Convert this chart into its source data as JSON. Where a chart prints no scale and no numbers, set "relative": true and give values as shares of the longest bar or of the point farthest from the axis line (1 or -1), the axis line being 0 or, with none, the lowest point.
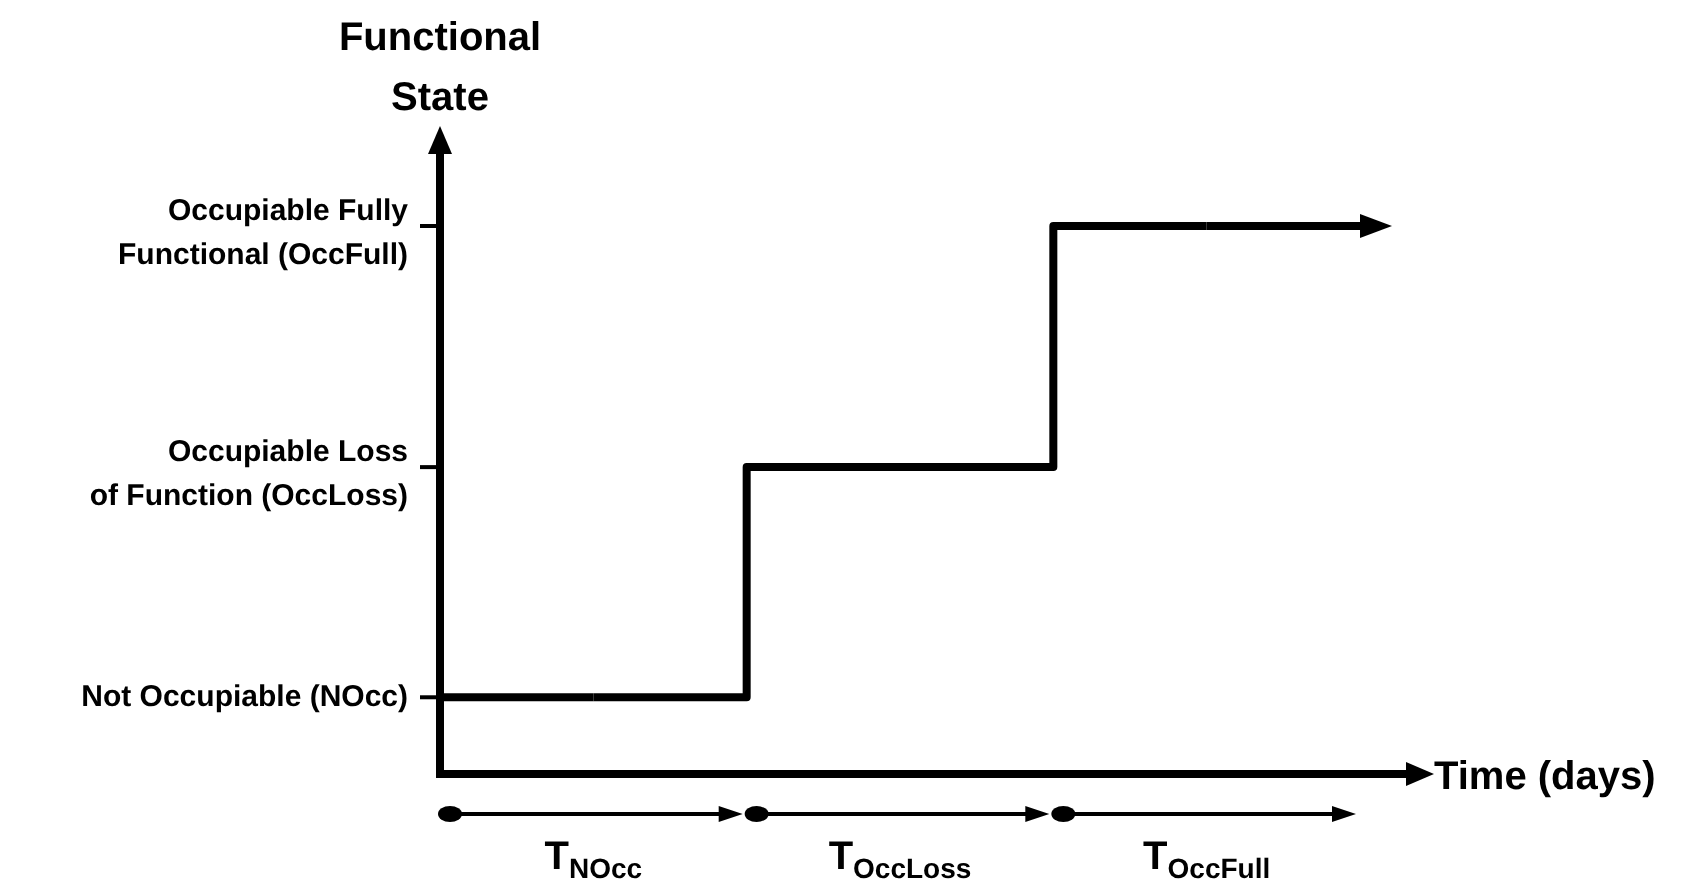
{
  "chart_data": {
    "type": "step",
    "relative": true,
    "xlabel": "Time (days)",
    "ylabel": "Functional State",
    "categories": [
      "T$_{NOcc}$",
      "T$_{OccLoss}$",
      "T$_{OccFull}$"
    ],
    "series": [
      {
        "color": "#000000",
        "values": [
          0.14,
          0.56,
          1
        ]
      }
    ],
    "marker": "none",
    "grid": false,
    "legend": false,
    "annotations": [
      "Not Occupiable (NOcc)",
      "Occupiable Loss\nof Function (OccLoss)",
      "Occupiable Fully\nFunctional (OccFull)"
    ]
  }
}
